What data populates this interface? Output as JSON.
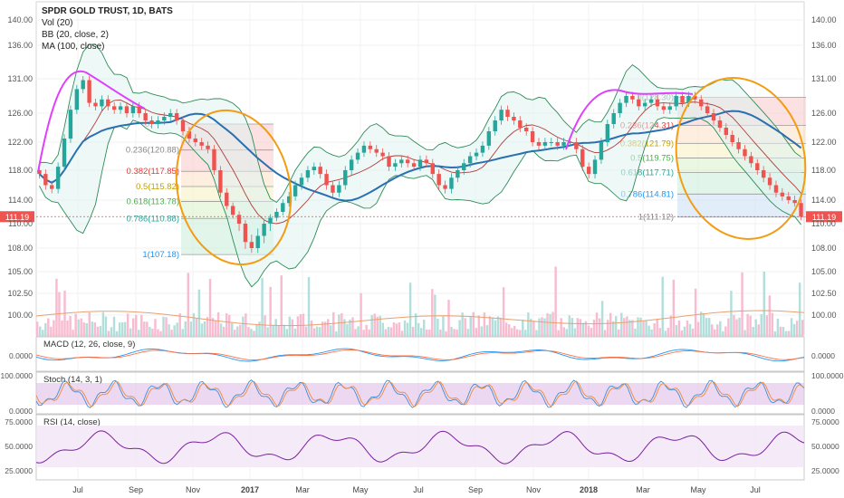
{
  "header": {
    "title": "SPDR GOLD TRUST, 1D, BATS",
    "studies": [
      "Vol (20)",
      "BB (20, close, 2)",
      "MA (100, close)"
    ]
  },
  "price_badge": "111.19",
  "colors": {
    "up": "#26a69a",
    "down": "#ef5350",
    "bb": "#2e8b57",
    "ma": "#2a6fb0",
    "ellipse": "#f39c12",
    "highlight": "#e040fb",
    "osc_fill": "#e1bee7",
    "osc_line": "#7b1fa2"
  },
  "chart_data": [
    {
      "type": "line",
      "name_label": "main-price",
      "title": "SPDR GOLD TRUST, 1D, BATS",
      "y_ticks": [
        140.0,
        136.0,
        131.0,
        126.0,
        122.0,
        118.0,
        114.0,
        110.0,
        108.0,
        105.0,
        102.5,
        100.0
      ],
      "y_tick_labels": [
        "140.00",
        "136.00",
        "131.00",
        "126.00",
        "122.00",
        "118.00",
        "114.00",
        "110.00",
        "108.00",
        "105.00",
        "102.50",
        "100.00"
      ],
      "x_tick_labels": [
        "Jul",
        "Sep",
        "Nov",
        "2017",
        "Mar",
        "May",
        "Jul",
        "Sep",
        "Nov",
        "2018",
        "Mar",
        "May",
        "Jul"
      ],
      "fib_left": {
        "levels": [
          {
            "ratio": "0.236",
            "value": 120.88,
            "label": "0.236(120.88)"
          },
          {
            "ratio": "0.382",
            "value": 117.85,
            "label": "0.382(117.85)"
          },
          {
            "ratio": "0.5",
            "value": 115.82,
            "label": "0.5(115.82)"
          },
          {
            "ratio": "0.618",
            "value": 113.78,
            "label": "0.618(113.78)"
          },
          {
            "ratio": "0.786",
            "value": 110.88,
            "label": "0.786(110.88)"
          },
          {
            "ratio": "1",
            "value": 107.18,
            "label": "1(107.18)"
          }
        ],
        "top_partial": "0."
      },
      "fib_right": {
        "levels": [
          {
            "ratio": "0",
            "value": 128.3,
            "label": "0(128.30)"
          },
          {
            "ratio": "0.236",
            "value": 124.31,
            "label": "0.236(124.31)"
          },
          {
            "ratio": "0.382",
            "value": 121.79,
            "label": "0.382(121.79)"
          },
          {
            "ratio": "0.5",
            "value": 119.75,
            "label": "0.5(119.75)"
          },
          {
            "ratio": "0.618",
            "value": 117.71,
            "label": "0.618(117.71)"
          },
          {
            "ratio": "0.786",
            "value": 114.81,
            "label": "0.786(114.81)"
          },
          {
            "ratio": "1",
            "value": 111.12,
            "label": "1(111.12)"
          }
        ]
      },
      "last_price": 111.19,
      "series": [
        {
          "name": "Close",
          "values": [
            117.5,
            116.0,
            115.5,
            118.5,
            122.5,
            126.5,
            129.5,
            130.8,
            127.5,
            127.0,
            128.0,
            127.0,
            126.5,
            127.0,
            126.0,
            127.0,
            126.0,
            125.0,
            124.5,
            125.0,
            125.5,
            126.0,
            125.0,
            123.5,
            122.5,
            122.0,
            121.5,
            121.0,
            118.0,
            115.0,
            113.0,
            111.5,
            110.0,
            108.5,
            108.0,
            109.0,
            110.0,
            111.0,
            112.0,
            113.5,
            114.5,
            116.0,
            117.0,
            118.0,
            118.5,
            117.5,
            116.0,
            115.0,
            116.0,
            118.0,
            119.5,
            120.5,
            121.5,
            121.0,
            120.5,
            120.0,
            118.5,
            119.0,
            119.5,
            119.0,
            118.5,
            119.5,
            119.0,
            117.5,
            116.0,
            115.5,
            117.0,
            118.0,
            119.0,
            120.0,
            120.5,
            121.5,
            123.5,
            125.0,
            126.5,
            125.5,
            125.0,
            124.0,
            123.5,
            122.0,
            121.5,
            122.0,
            122.0,
            121.5,
            122.0,
            122.0,
            121.0,
            118.5,
            117.5,
            119.5,
            122.0,
            124.5,
            126.0,
            127.5,
            128.5,
            128.0,
            127.0,
            127.5,
            128.0,
            127.0,
            126.5,
            127.0,
            128.5,
            127.5,
            128.5,
            128.0,
            127.0,
            126.0,
            125.0,
            124.0,
            123.0,
            122.0,
            121.0,
            120.0,
            119.0,
            118.0,
            117.0,
            116.0,
            115.0,
            114.5,
            114.0,
            113.5,
            111.2
          ]
        }
      ]
    },
    {
      "type": "bar",
      "name_label": "volume",
      "title": "Vol (20)"
    },
    {
      "type": "line",
      "name_label": "macd",
      "title": "MACD (12, 26, close, 9)",
      "y_tick_labels": [
        "0.0000"
      ]
    },
    {
      "type": "line",
      "name_label": "stoch",
      "title": "Stoch (14, 3, 1)",
      "y_tick_labels": [
        "100.0000",
        "0.0000"
      ]
    },
    {
      "type": "line",
      "name_label": "rsi",
      "title": "RSI (14, close)",
      "y_tick_labels": [
        "75.0000",
        "50.0000",
        "25.0000"
      ]
    }
  ]
}
